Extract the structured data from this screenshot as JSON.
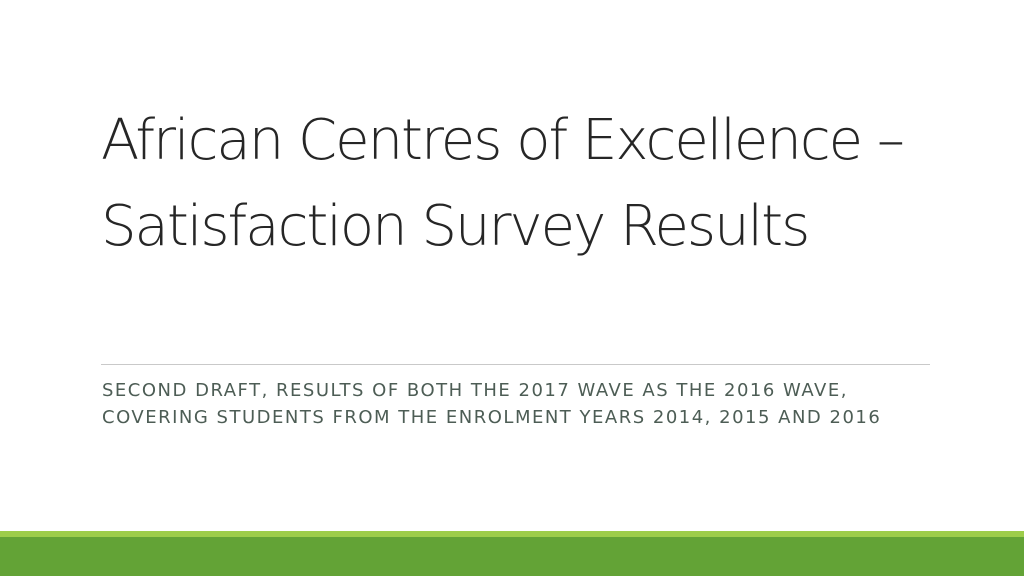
{
  "slide": {
    "title": "African Centres of Excellence – Satisfaction Survey Results",
    "subtitle": "Second draft, results of both the 2017 wave as the 2016 wave, covering students from the enrolment years 2014, 2015 and 2016"
  },
  "colors": {
    "accent_dark": "#63a336",
    "accent_light": "#9dcd4a",
    "title_text": "#262626",
    "subtitle_text": "#4d5d55",
    "divider": "#c9c9c9"
  }
}
